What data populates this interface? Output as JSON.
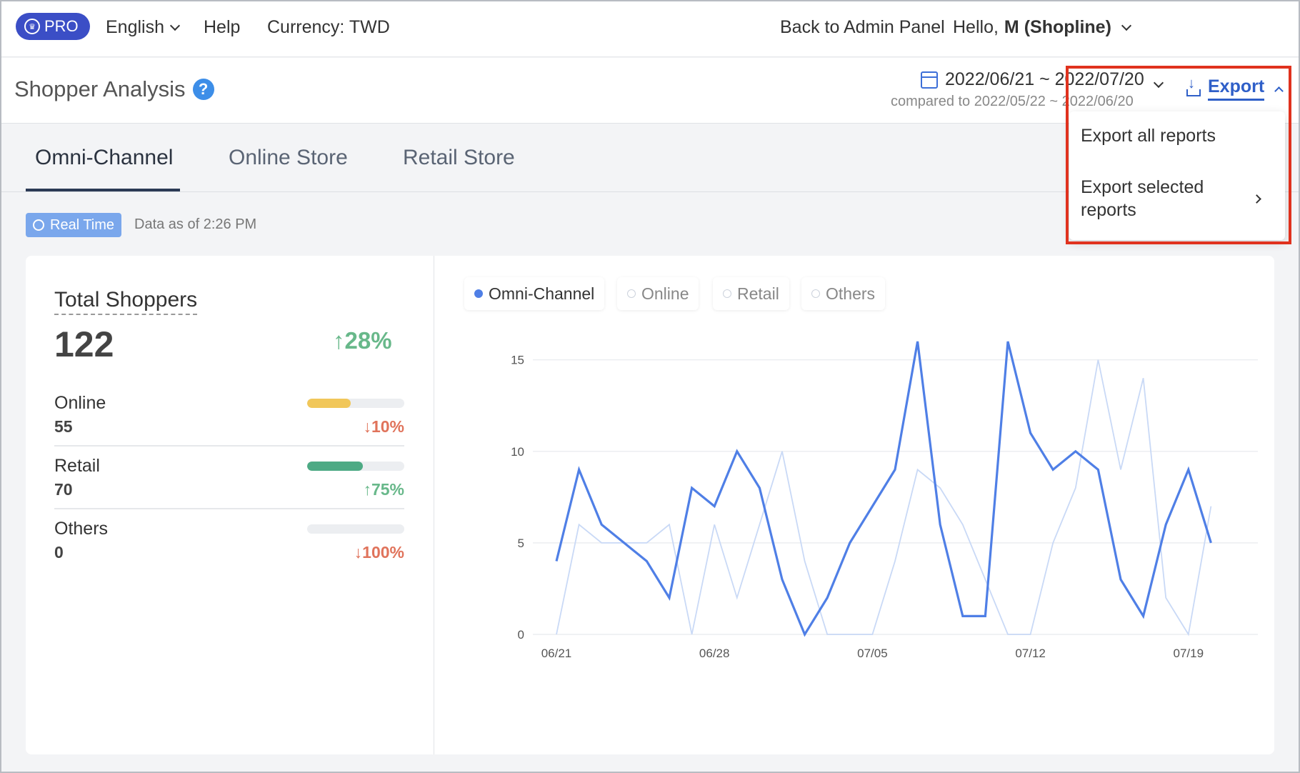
{
  "topbar": {
    "pro_label": "PRO",
    "language": "English",
    "help": "Help",
    "currency": "Currency: TWD",
    "back_admin": "Back to Admin Panel",
    "greeting_prefix": "Hello,",
    "user_name": "M (Shopline)"
  },
  "header": {
    "title": "Shopper Analysis",
    "help_glyph": "?",
    "date_range": "2022/06/21 ~ 2022/07/20",
    "compared_to": "compared to 2022/05/22 ~ 2022/06/20",
    "export_label": "Export"
  },
  "export_menu": {
    "items": [
      "Export all reports",
      "Export selected",
      "reports"
    ]
  },
  "tabs": [
    "Omni-Channel",
    "Online Store",
    "Retail Store"
  ],
  "realtime": {
    "badge": "Real Time",
    "data_as_of": "Data as of 2:26 PM"
  },
  "summary": {
    "title": "Total Shoppers",
    "value": "122",
    "change": "↑28%",
    "rows": [
      {
        "name": "Online",
        "value": "55",
        "change": "↓10%",
        "bar_fraction": 0.45,
        "bar_color": "#f1c75a",
        "dir": "down"
      },
      {
        "name": "Retail",
        "value": "70",
        "change": "↑75%",
        "bar_fraction": 0.57,
        "bar_color": "#4daa84",
        "dir": "up"
      },
      {
        "name": "Others",
        "value": "0",
        "change": "↓100%",
        "bar_fraction": 0,
        "bar_color": "#cccccc",
        "dir": "down"
      }
    ]
  },
  "legend": [
    "Omni-Channel",
    "Online",
    "Retail",
    "Others"
  ],
  "colors": {
    "accent": "#2f5fc8",
    "primary_line": "#4f7fe6",
    "secondary_line": "#c9d9f6",
    "highlight": "#e0321e"
  },
  "chart_data": {
    "type": "line",
    "x_tick_labels": [
      "06/21",
      "06/28",
      "07/05",
      "07/12",
      "07/19"
    ],
    "y_ticks": [
      0,
      5,
      10,
      15
    ],
    "ylim": [
      0,
      16
    ],
    "series": [
      {
        "name": "Omni-Channel",
        "values": [
          4,
          9,
          6,
          5,
          4,
          2,
          8,
          7,
          10,
          8,
          3,
          0,
          2,
          5,
          7,
          9,
          16,
          6,
          1,
          1,
          16,
          11,
          9,
          10,
          9,
          3,
          1,
          6,
          9,
          5
        ]
      },
      {
        "values": [
          0,
          6,
          5,
          5,
          5,
          6,
          0,
          6,
          2,
          6,
          10,
          4,
          0,
          0,
          0,
          4,
          9,
          8,
          6,
          3,
          0,
          0,
          5,
          8,
          15,
          9,
          14,
          2,
          0,
          7
        ]
      }
    ]
  }
}
